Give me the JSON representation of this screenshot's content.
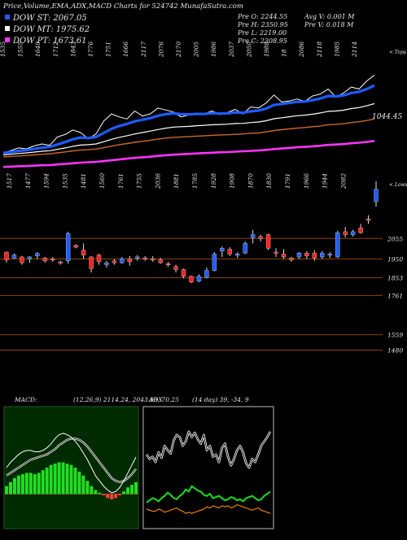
{
  "header": {
    "title": "Price,Volume,EMA,ADX,MACD Charts for 524742  MunafaSutra.com"
  },
  "legend": [
    {
      "label": "DOW ST: 2067.05",
      "color": "#1e5cff"
    },
    {
      "label": "DOW MT: 1975.62",
      "color": "#ffffff"
    },
    {
      "label": "DOW PT: 1673.61",
      "color": "#ff33ff"
    }
  ],
  "stats": {
    "row1": [
      "Pre  O: 2244.55",
      "Avg V: 0.001 M"
    ],
    "row2": [
      "Pre  H: 2350.95",
      "Pre  V: 0.018 M"
    ],
    "row3": [
      "Pre  L: 2219.00",
      ""
    ],
    "row4": [
      "Pre  C: 2308.95",
      ""
    ]
  },
  "colors": {
    "up": "#1e5cff",
    "down": "#ff2020",
    "ema_fast": "#1e5cff",
    "ema_slow": "#ffffff",
    "ema_long": "#ff33ff",
    "guide": "#8b4513",
    "panel_bg": "#000000",
    "macd_panel_bg": "#002a00",
    "macd_bars": "#22dd22",
    "adx_plus": "#22cc22",
    "adx_minus": "#ff8800"
  },
  "chart_data": [
    {
      "type": "line",
      "panel": "volume-ema",
      "label_top": "< Tops",
      "label_bottom": "< Lows",
      "value_label": "1044.45",
      "top_ticks": [
        "1535",
        "1555",
        "1640",
        "1712",
        "1843",
        "1776",
        "1751",
        "1666",
        "2117",
        "2076",
        "2170",
        "2005",
        "1986",
        "2037",
        "2050",
        "1988",
        "18",
        "2086",
        "2118",
        "1985",
        "2114"
      ],
      "bottom_ticks": [
        "1517",
        "1477",
        "1594",
        "1535",
        "1481",
        "1560",
        "1761",
        "1755",
        "2036",
        "1881",
        "1785",
        "1928",
        "1908",
        "1870",
        "1830",
        "1791",
        "1966",
        "1944",
        "2082"
      ],
      "series": [
        {
          "role": "price",
          "values": [
            1510,
            1522,
            1535,
            1530,
            1545,
            1555,
            1548,
            1590,
            1602,
            1625,
            1612,
            1580,
            1605,
            1670,
            1705,
            1690,
            1680,
            1720,
            1695,
            1705,
            1735,
            1725,
            1715,
            1690,
            1700,
            1710,
            1705,
            1720,
            1702,
            1712,
            1728,
            1705,
            1740,
            1735,
            1760,
            1800,
            1765,
            1770,
            1780,
            1768,
            1795,
            1805,
            1830,
            1790,
            1810,
            1840,
            1830,
            1870,
            1900
          ]
        },
        {
          "role": "ema_fast",
          "values": [
            1510,
            1514,
            1520,
            1524,
            1530,
            1536,
            1540,
            1552,
            1564,
            1578,
            1587,
            1584,
            1590,
            1610,
            1630,
            1645,
            1655,
            1668,
            1676,
            1684,
            1696,
            1704,
            1708,
            1704,
            1703,
            1705,
            1705,
            1709,
            1707,
            1708,
            1713,
            1711,
            1718,
            1722,
            1732,
            1750,
            1755,
            1760,
            1766,
            1767,
            1774,
            1782,
            1795,
            1793,
            1798,
            1810,
            1816,
            1830,
            1848
          ]
        },
        {
          "role": "ema_slow",
          "values": [
            1500,
            1503,
            1507,
            1510,
            1514,
            1518,
            1521,
            1528,
            1535,
            1543,
            1549,
            1551,
            1555,
            1566,
            1578,
            1588,
            1596,
            1605,
            1612,
            1619,
            1627,
            1634,
            1639,
            1641,
            1643,
            1646,
            1648,
            1651,
            1652,
            1654,
            1657,
            1658,
            1662,
            1665,
            1671,
            1681,
            1686,
            1691,
            1696,
            1699,
            1704,
            1710,
            1718,
            1720,
            1724,
            1732,
            1737,
            1746,
            1757
          ]
        },
        {
          "role": "ema_mid",
          "values": [
            1490,
            1492,
            1495,
            1497,
            1500,
            1503,
            1505,
            1510,
            1515,
            1520,
            1524,
            1526,
            1529,
            1536,
            1544,
            1551,
            1557,
            1563,
            1568,
            1573,
            1579,
            1584,
            1588,
            1590,
            1592,
            1594,
            1596,
            1598,
            1600,
            1601,
            1603,
            1605,
            1608,
            1610,
            1615,
            1622,
            1626,
            1630,
            1634,
            1637,
            1641,
            1645,
            1651,
            1653,
            1656,
            1662,
            1666,
            1672,
            1680
          ]
        },
        {
          "role": "ema_long",
          "values": [
            1440,
            1441,
            1443,
            1444,
            1446,
            1448,
            1449,
            1452,
            1455,
            1458,
            1461,
            1463,
            1465,
            1469,
            1473,
            1477,
            1481,
            1485,
            1488,
            1491,
            1495,
            1498,
            1501,
            1503,
            1505,
            1507,
            1509,
            1511,
            1513,
            1514,
            1516,
            1518,
            1520,
            1522,
            1525,
            1529,
            1532,
            1535,
            1538,
            1540,
            1543,
            1546,
            1550,
            1552,
            1554,
            1558,
            1561,
            1565,
            1570
          ]
        }
      ]
    },
    {
      "type": "candlestick",
      "panel": "price",
      "price_labels": [
        "2055",
        "1950",
        "1853",
        "1761",
        "1559",
        "1480"
      ],
      "price_levels": [
        2055,
        1950,
        1853,
        1761,
        1559,
        1480
      ],
      "ylim": [
        1440,
        2270
      ],
      "candles": [
        {
          "o": 1985,
          "h": 1988,
          "l": 1930,
          "c": 1945,
          "d": "down"
        },
        {
          "o": 1955,
          "h": 1978,
          "l": 1950,
          "c": 1970,
          "d": "up"
        },
        {
          "o": 1960,
          "h": 1965,
          "l": 1920,
          "c": 1930,
          "d": "down"
        },
        {
          "o": 1950,
          "h": 1965,
          "l": 1930,
          "c": 1960,
          "d": "up"
        },
        {
          "o": 1965,
          "h": 1985,
          "l": 1950,
          "c": 1978,
          "d": "up"
        },
        {
          "o": 1955,
          "h": 1960,
          "l": 1930,
          "c": 1940,
          "d": "down"
        },
        {
          "o": 1950,
          "h": 1960,
          "l": 1935,
          "c": 1945,
          "d": "down"
        },
        {
          "o": 1935,
          "h": 1940,
          "l": 1920,
          "c": 1930,
          "d": "down"
        },
        {
          "o": 1940,
          "h": 2090,
          "l": 1925,
          "c": 2080,
          "d": "up"
        },
        {
          "o": 2020,
          "h": 2025,
          "l": 2005,
          "c": 2010,
          "d": "down"
        },
        {
          "o": 1995,
          "h": 2030,
          "l": 1950,
          "c": 1970,
          "d": "down"
        },
        {
          "o": 1960,
          "h": 1965,
          "l": 1880,
          "c": 1900,
          "d": "down"
        },
        {
          "o": 1970,
          "h": 1975,
          "l": 1920,
          "c": 1935,
          "d": "down"
        },
        {
          "o": 1920,
          "h": 1940,
          "l": 1905,
          "c": 1930,
          "d": "up"
        },
        {
          "o": 1940,
          "h": 1950,
          "l": 1920,
          "c": 1930,
          "d": "down"
        },
        {
          "o": 1930,
          "h": 1960,
          "l": 1925,
          "c": 1950,
          "d": "up"
        },
        {
          "o": 1950,
          "h": 1965,
          "l": 1915,
          "c": 1935,
          "d": "down"
        },
        {
          "o": 1955,
          "h": 1970,
          "l": 1940,
          "c": 1960,
          "d": "up"
        },
        {
          "o": 1955,
          "h": 1965,
          "l": 1940,
          "c": 1950,
          "d": "down"
        },
        {
          "o": 1950,
          "h": 1965,
          "l": 1935,
          "c": 1945,
          "d": "down"
        },
        {
          "o": 1945,
          "h": 1955,
          "l": 1925,
          "c": 1930,
          "d": "down"
        },
        {
          "o": 1925,
          "h": 1935,
          "l": 1910,
          "c": 1920,
          "d": "down"
        },
        {
          "o": 1910,
          "h": 1920,
          "l": 1880,
          "c": 1895,
          "d": "down"
        },
        {
          "o": 1895,
          "h": 1900,
          "l": 1850,
          "c": 1860,
          "d": "down"
        },
        {
          "o": 1860,
          "h": 1865,
          "l": 1825,
          "c": 1830,
          "d": "down"
        },
        {
          "o": 1835,
          "h": 1870,
          "l": 1830,
          "c": 1860,
          "d": "up"
        },
        {
          "o": 1855,
          "h": 1905,
          "l": 1850,
          "c": 1890,
          "d": "up"
        },
        {
          "o": 1890,
          "h": 1985,
          "l": 1885,
          "c": 1975,
          "d": "up"
        },
        {
          "o": 1990,
          "h": 2015,
          "l": 1960,
          "c": 2005,
          "d": "up"
        },
        {
          "o": 2000,
          "h": 2010,
          "l": 1965,
          "c": 1975,
          "d": "down"
        },
        {
          "o": 1970,
          "h": 1985,
          "l": 1955,
          "c": 1975,
          "d": "up"
        },
        {
          "o": 1980,
          "h": 2040,
          "l": 1975,
          "c": 2030,
          "d": "up"
        },
        {
          "o": 2060,
          "h": 2100,
          "l": 2030,
          "c": 2075,
          "d": "up"
        },
        {
          "o": 2065,
          "h": 2075,
          "l": 2040,
          "c": 2055,
          "d": "down"
        },
        {
          "o": 2075,
          "h": 2080,
          "l": 1995,
          "c": 2005,
          "d": "down"
        },
        {
          "o": 1985,
          "h": 2005,
          "l": 1960,
          "c": 1980,
          "d": "down"
        },
        {
          "o": 1975,
          "h": 2000,
          "l": 1950,
          "c": 1960,
          "d": "down"
        },
        {
          "o": 1955,
          "h": 1960,
          "l": 1935,
          "c": 1945,
          "d": "down"
        },
        {
          "o": 1960,
          "h": 1985,
          "l": 1950,
          "c": 1980,
          "d": "up"
        },
        {
          "o": 1980,
          "h": 1990,
          "l": 1950,
          "c": 1965,
          "d": "down"
        },
        {
          "o": 1980,
          "h": 1995,
          "l": 1940,
          "c": 1955,
          "d": "down"
        },
        {
          "o": 1960,
          "h": 1990,
          "l": 1950,
          "c": 1980,
          "d": "up"
        },
        {
          "o": 1970,
          "h": 1985,
          "l": 1955,
          "c": 1975,
          "d": "up"
        },
        {
          "o": 1960,
          "h": 2095,
          "l": 1955,
          "c": 2085,
          "d": "up"
        },
        {
          "o": 2090,
          "h": 2115,
          "l": 2060,
          "c": 2075,
          "d": "down"
        },
        {
          "o": 2075,
          "h": 2100,
          "l": 2065,
          "c": 2090,
          "d": "up"
        },
        {
          "o": 2110,
          "h": 2130,
          "l": 2080,
          "c": 2085,
          "d": "down"
        },
        {
          "o": 2155,
          "h": 2175,
          "l": 2130,
          "c": 2150,
          "d": "down"
        },
        {
          "o": 2244.55,
          "h": 2350.95,
          "l": 2219.0,
          "c": 2308.95,
          "d": "up"
        }
      ]
    },
    {
      "type": "area",
      "panel": "macd",
      "title": "MACD:",
      "params": "(12,26,9) 2114.24, 2043.99, 70.25",
      "histogram": [
        6,
        9,
        12,
        14,
        15,
        16,
        16,
        15,
        16,
        18,
        20,
        22,
        23,
        24,
        24,
        23,
        22,
        20,
        17,
        14,
        10,
        6,
        3,
        1,
        -1,
        -3,
        -4,
        -3,
        -1,
        2,
        5,
        7,
        9
      ],
      "macd": [
        20,
        24,
        27,
        30,
        32,
        33,
        33,
        32,
        32,
        33,
        35,
        38,
        42,
        45,
        46,
        45,
        43,
        40,
        36,
        31,
        26,
        20,
        14,
        10,
        6,
        3,
        1,
        2,
        5,
        10,
        16,
        22,
        28
      ],
      "signal": [
        14,
        16,
        18,
        20,
        22,
        24,
        26,
        27,
        28,
        29,
        30,
        32,
        34,
        37,
        39,
        41,
        42,
        42,
        41,
        39,
        36,
        32,
        28,
        24,
        20,
        16,
        12,
        10,
        9,
        10,
        12,
        15,
        19
      ],
      "ylim": [
        -20,
        60
      ]
    },
    {
      "type": "line",
      "panel": "adx",
      "title": "ADX",
      "params": "(14 day) 39, -34, 9",
      "adx": [
        62,
        58,
        60,
        55,
        64,
        59,
        70,
        66,
        63,
        75,
        80,
        78,
        70,
        74,
        83,
        78,
        82,
        76,
        72,
        80,
        66,
        70,
        60,
        62,
        55,
        68,
        72,
        60,
        52,
        58,
        66,
        70,
        64,
        54,
        50,
        58,
        55,
        62,
        70,
        74,
        78,
        83
      ],
      "plus": [
        18,
        20,
        22,
        21,
        19,
        22,
        24,
        27,
        25,
        22,
        21,
        24,
        26,
        30,
        28,
        33,
        31,
        29,
        28,
        25,
        24,
        26,
        22,
        23,
        24,
        22,
        20,
        21,
        23,
        22,
        20,
        21,
        19,
        22,
        23,
        24,
        22,
        20,
        21,
        24,
        26,
        28
      ],
      "minus": [
        12,
        11,
        10,
        10,
        12,
        11,
        9,
        10,
        11,
        12,
        13,
        11,
        10,
        8,
        9,
        8,
        9,
        10,
        11,
        12,
        14,
        13,
        15,
        14,
        13,
        15,
        14,
        15,
        13,
        14,
        16,
        15,
        14,
        13,
        12,
        11,
        12,
        13,
        11,
        10,
        9,
        8
      ],
      "ylim": [
        0,
        100
      ]
    }
  ]
}
